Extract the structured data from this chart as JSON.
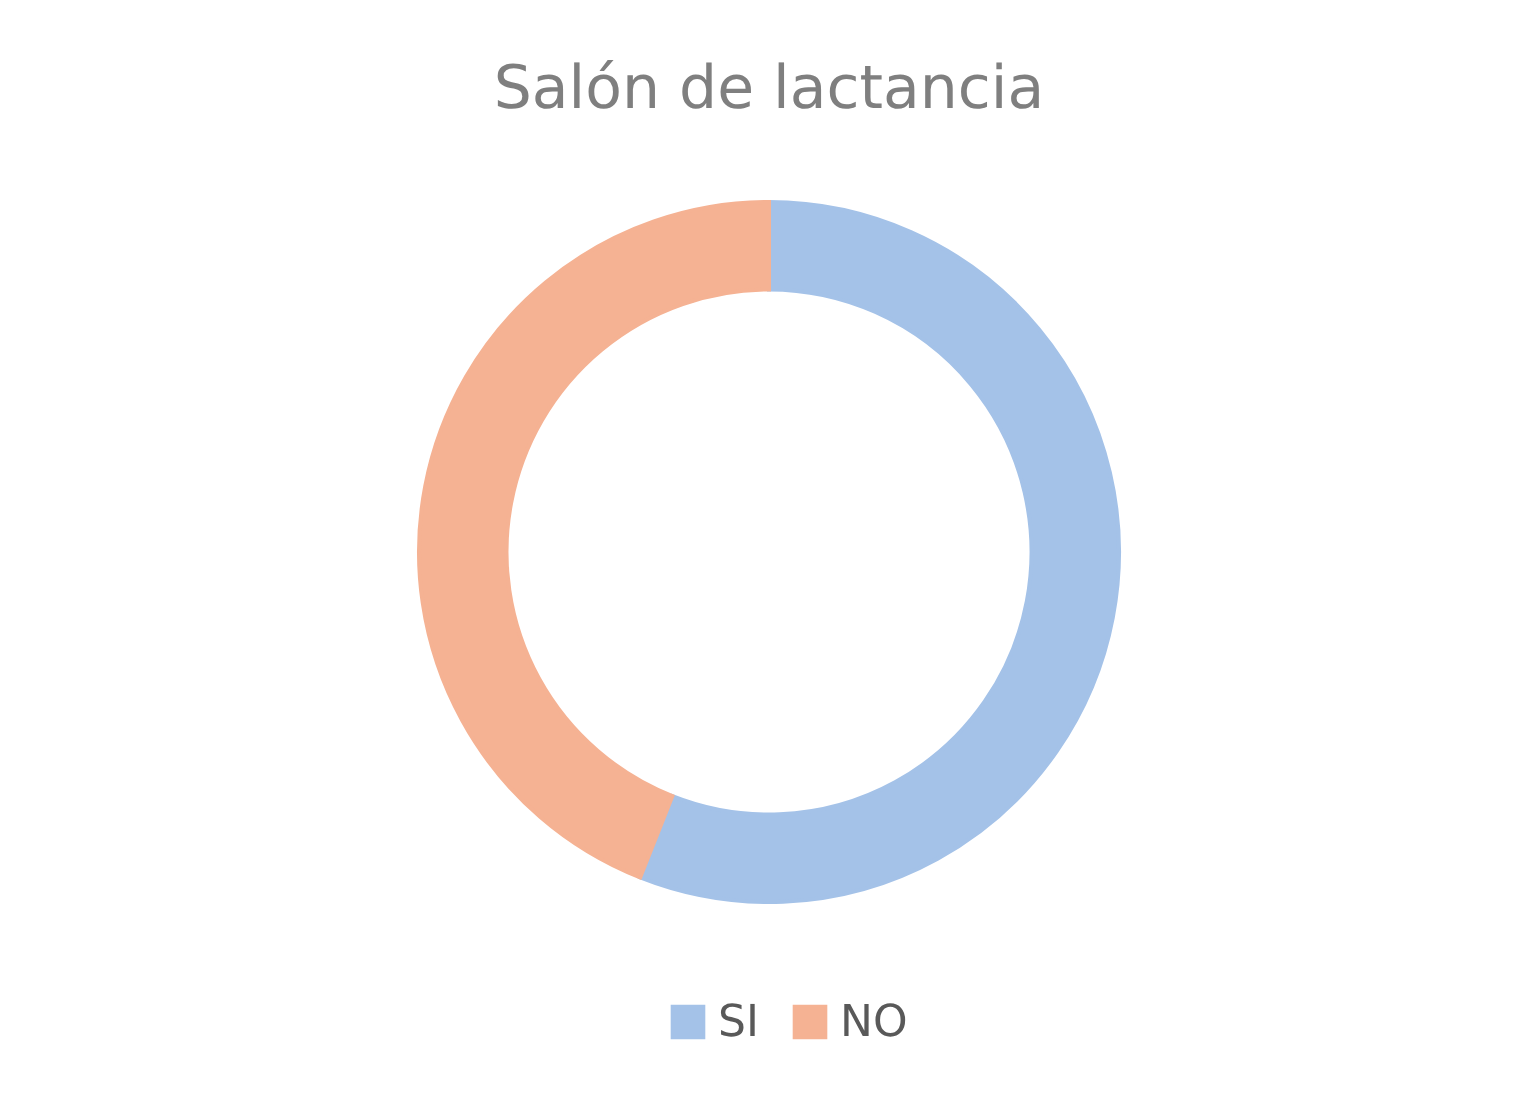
{
  "chart_data": {
    "type": "donut",
    "title": "Salón de lactancia",
    "categories": [
      "SI",
      "NO"
    ],
    "values": [
      56,
      44
    ],
    "colors": [
      "#a4c2e8",
      "#f5b293"
    ],
    "legend": "bottom"
  }
}
